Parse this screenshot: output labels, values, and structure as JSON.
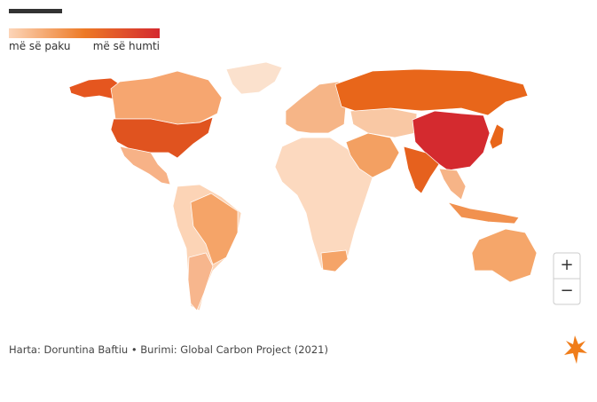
{
  "legend": {
    "min_label": "më së paku",
    "max_label": "më së humti"
  },
  "footer": {
    "credit": "Harta: Doruntina Baftiu • Burimi: Global Carbon Project (2021)"
  },
  "zoom": {
    "in": "+",
    "out": "−"
  }
}
